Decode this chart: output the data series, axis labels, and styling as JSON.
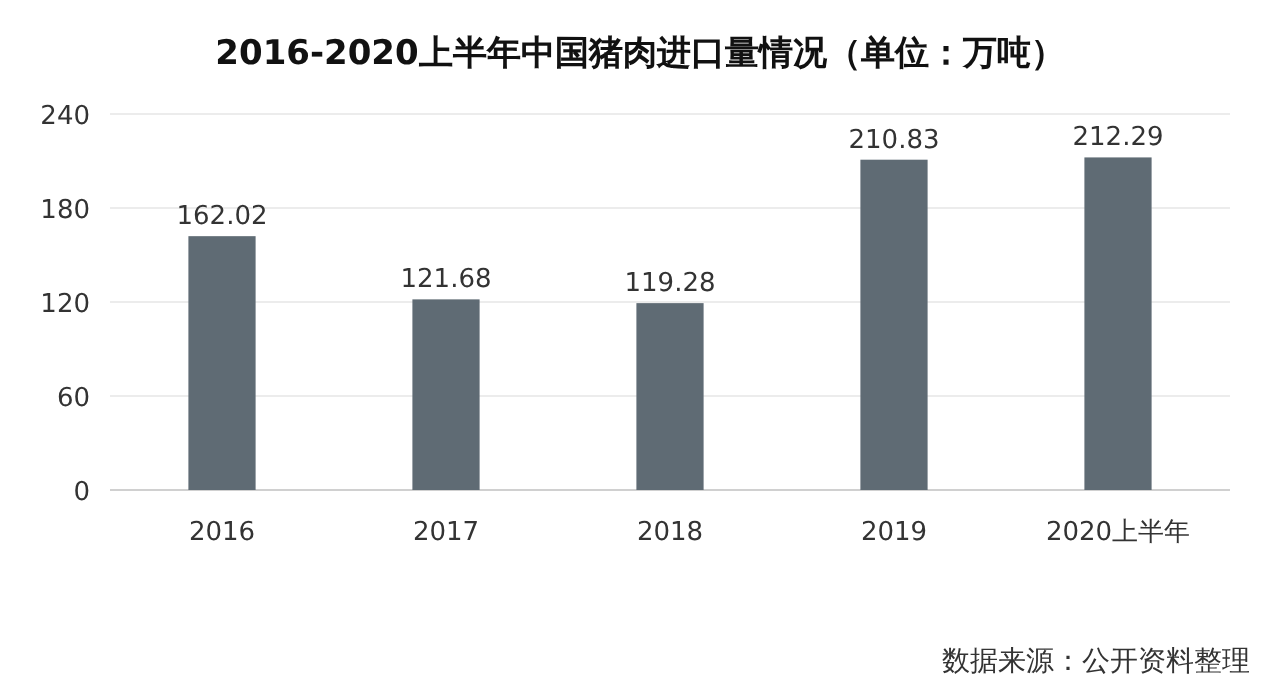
{
  "chart_data": {
    "type": "bar",
    "title": "2016-2020上半年中国猪肉进口量情况（单位：万吨）",
    "categories": [
      "2016",
      "2017",
      "2018",
      "2019",
      "2020上半年"
    ],
    "values": [
      162.02,
      121.68,
      119.28,
      210.83,
      212.29
    ],
    "color": "#5f6b74",
    "ylim": [
      0,
      240
    ],
    "yticks": [
      0,
      60,
      120,
      180,
      240
    ],
    "grid": "y",
    "data_labels": true,
    "annotations": [
      "数据来源：公开资料整理"
    ]
  }
}
